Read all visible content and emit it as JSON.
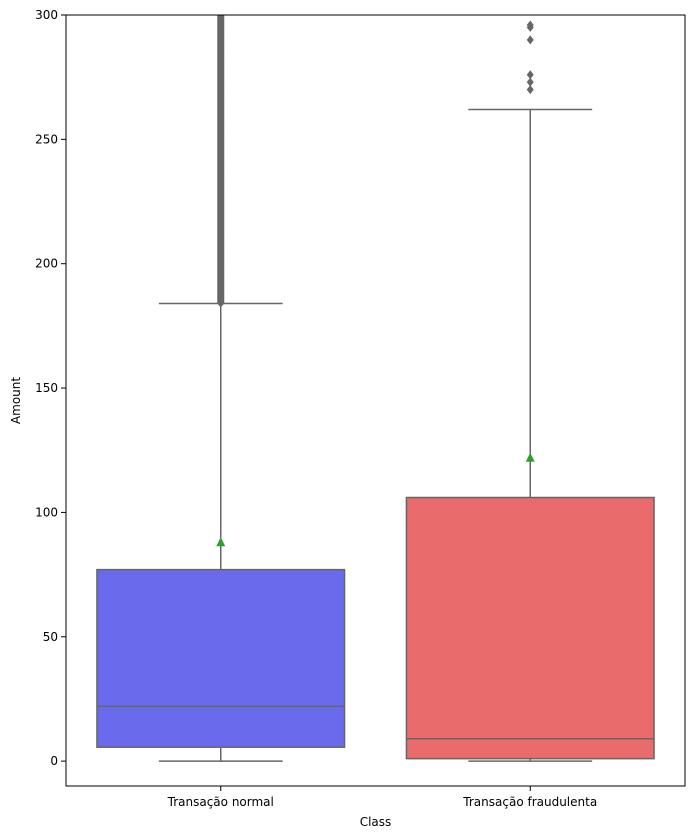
{
  "chart_data": {
    "type": "box",
    "xlabel": "Class",
    "ylabel": "Amount",
    "ylim": [
      -10,
      300
    ],
    "yticks": [
      0,
      50,
      100,
      150,
      200,
      250,
      300
    ],
    "categories": [
      "Transação normal",
      "Transação fraudulenta"
    ],
    "boxes": [
      {
        "category": "Transação normal",
        "color": "#6a6aec",
        "whisker_low": 0,
        "q1": 5.6,
        "median": 22,
        "q3": 77,
        "whisker_high": 184,
        "mean": 88,
        "outliers_range": [
          184,
          300
        ]
      },
      {
        "category": "Transação fraudulenta",
        "color": "#e96b6b",
        "whisker_low": 0,
        "q1": 1,
        "median": 9,
        "q3": 106,
        "whisker_high": 262,
        "mean": 122,
        "outliers": [
          270,
          273,
          276,
          290,
          295,
          296
        ]
      }
    ],
    "line_color": "#666666",
    "mean_marker_color": "#2ca02c"
  }
}
